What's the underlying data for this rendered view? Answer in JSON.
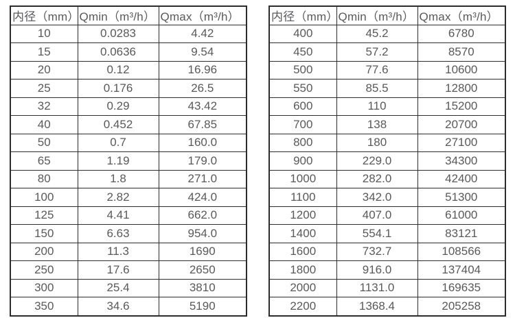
{
  "tables": [
    {
      "name": "flow-rate-table-small-diameters",
      "headers": [
        "内径（mm）",
        "Qmin（m³/h）",
        "Qmax（m³/h）"
      ],
      "rows": [
        [
          "10",
          "0.0283",
          "4.42"
        ],
        [
          "15",
          "0.0636",
          "9.54"
        ],
        [
          "20",
          "0.12",
          "16.96"
        ],
        [
          "25",
          "0.176",
          "26.5"
        ],
        [
          "32",
          "0.29",
          "43.42"
        ],
        [
          "40",
          "0.452",
          "67.85"
        ],
        [
          "50",
          "0.7",
          "160.0"
        ],
        [
          "65",
          "1.19",
          "179.0"
        ],
        [
          "80",
          "1.8",
          "271.0"
        ],
        [
          "100",
          "2.82",
          "424.0"
        ],
        [
          "125",
          "4.41",
          "662.0"
        ],
        [
          "150",
          "6.63",
          "954.0"
        ],
        [
          "200",
          "11.3",
          "1690"
        ],
        [
          "250",
          "17.6",
          "2650"
        ],
        [
          "300",
          "25.4",
          "3810"
        ],
        [
          "350",
          "34.6",
          "5190"
        ]
      ]
    },
    {
      "name": "flow-rate-table-large-diameters",
      "headers": [
        "内径（mm）",
        "Qmin（m³/h）",
        "Qmax（m³/h）"
      ],
      "rows": [
        [
          "400",
          "45.2",
          "6780"
        ],
        [
          "450",
          "57.2",
          "8570"
        ],
        [
          "500",
          "77.6",
          "10600"
        ],
        [
          "550",
          "85.5",
          "12800"
        ],
        [
          "600",
          "110",
          "15200"
        ],
        [
          "700",
          "138",
          "20700"
        ],
        [
          "800",
          "180",
          "27100"
        ],
        [
          "900",
          "229.0",
          "34300"
        ],
        [
          "1000",
          "282.0",
          "42400"
        ],
        [
          "1100",
          "342.0",
          "51300"
        ],
        [
          "1200",
          "407.0",
          "61000"
        ],
        [
          "1400",
          "554.1",
          "83121"
        ],
        [
          "1600",
          "732.7",
          "108566"
        ],
        [
          "1800",
          "916.0",
          "137404"
        ],
        [
          "2000",
          "1131.0",
          "169635"
        ],
        [
          "2200",
          "1368.4",
          "205258"
        ]
      ]
    }
  ],
  "colors": {
    "border": "#2b2b2b",
    "text": "#58595b",
    "background": "#ffffff"
  }
}
